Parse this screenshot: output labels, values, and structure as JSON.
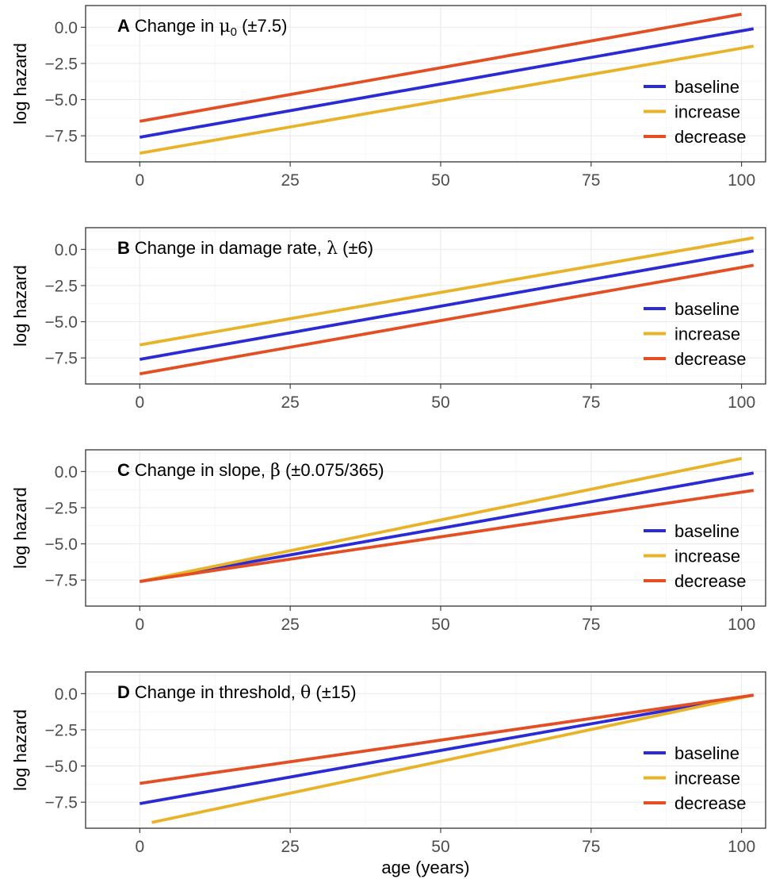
{
  "chart_data": [
    {
      "type": "line",
      "panel_letter": "A",
      "title_text": "Change in ",
      "param_symbol": "μ",
      "param_subscript": "0",
      "title_suffix": " (±7.5)",
      "ylabel": "log hazard",
      "xlabel": "",
      "xlim": [
        -9,
        104
      ],
      "ylim": [
        -9.3,
        1.5
      ],
      "x_ticks": [
        "0",
        "25",
        "50",
        "75",
        "100"
      ],
      "y_ticks": [
        "0.0",
        "-2.5",
        "-5.0",
        "-7.5"
      ],
      "grid": true,
      "legend_position": "right",
      "series": [
        {
          "name": "baseline",
          "color": "#2b2bd6",
          "x": [
            0,
            102
          ],
          "y": [
            -7.6,
            -0.1
          ]
        },
        {
          "name": "increase",
          "color": "#e8b328",
          "x": [
            0,
            102
          ],
          "y": [
            -8.7,
            -1.3
          ]
        },
        {
          "name": "decrease",
          "color": "#e34f22",
          "x": [
            0,
            100
          ],
          "y": [
            -6.5,
            0.9
          ]
        }
      ]
    },
    {
      "type": "line",
      "panel_letter": "B",
      "title_text": "Change in damage rate, ",
      "param_symbol": "λ",
      "param_subscript": "",
      "title_suffix": " (±6)",
      "ylabel": "log hazard",
      "xlabel": "",
      "xlim": [
        -9,
        104
      ],
      "ylim": [
        -9.3,
        1.5
      ],
      "x_ticks": [
        "0",
        "25",
        "50",
        "75",
        "100"
      ],
      "y_ticks": [
        "0.0",
        "-2.5",
        "-5.0",
        "-7.5"
      ],
      "grid": true,
      "legend_position": "right",
      "series": [
        {
          "name": "baseline",
          "color": "#2b2bd6",
          "x": [
            0,
            102
          ],
          "y": [
            -7.6,
            -0.1
          ]
        },
        {
          "name": "increase",
          "color": "#e8b328",
          "x": [
            0,
            102
          ],
          "y": [
            -6.6,
            0.8
          ]
        },
        {
          "name": "decrease",
          "color": "#e34f22",
          "x": [
            0,
            102
          ],
          "y": [
            -8.6,
            -1.1
          ]
        }
      ]
    },
    {
      "type": "line",
      "panel_letter": "C",
      "title_text": "Change in slope, ",
      "param_symbol": "β",
      "param_subscript": "",
      "title_suffix": " (±0.075/365)",
      "ylabel": "log hazard",
      "xlabel": "",
      "xlim": [
        -9,
        104
      ],
      "ylim": [
        -9.3,
        1.5
      ],
      "x_ticks": [
        "0",
        "25",
        "50",
        "75",
        "100"
      ],
      "y_ticks": [
        "0.0",
        "-2.5",
        "-5.0",
        "-7.5"
      ],
      "grid": true,
      "legend_position": "right",
      "series": [
        {
          "name": "baseline",
          "color": "#2b2bd6",
          "x": [
            0,
            102
          ],
          "y": [
            -7.6,
            -0.1
          ]
        },
        {
          "name": "increase",
          "color": "#e8b328",
          "x": [
            0,
            100
          ],
          "y": [
            -7.6,
            0.9
          ]
        },
        {
          "name": "decrease",
          "color": "#e34f22",
          "x": [
            0,
            102
          ],
          "y": [
            -7.6,
            -1.3
          ]
        }
      ]
    },
    {
      "type": "line",
      "panel_letter": "D",
      "title_text": "Change in threshold, ",
      "param_symbol": "θ",
      "param_subscript": "",
      "title_suffix": " (±15)",
      "ylabel": "log hazard",
      "xlabel": "age (years)",
      "xlim": [
        -9,
        104
      ],
      "ylim": [
        -9.3,
        1.5
      ],
      "x_ticks": [
        "0",
        "25",
        "50",
        "75",
        "100"
      ],
      "y_ticks": [
        "0.0",
        "-2.5",
        "-5.0",
        "-7.5"
      ],
      "grid": true,
      "legend_position": "right",
      "series": [
        {
          "name": "baseline",
          "color": "#2b2bd6",
          "x": [
            0,
            102
          ],
          "y": [
            -7.6,
            -0.1
          ]
        },
        {
          "name": "increase",
          "color": "#e8b328",
          "x": [
            2,
            102
          ],
          "y": [
            -8.9,
            -0.1
          ]
        },
        {
          "name": "decrease",
          "color": "#e34f22",
          "x": [
            0,
            102
          ],
          "y": [
            -6.2,
            -0.1
          ]
        }
      ]
    }
  ]
}
